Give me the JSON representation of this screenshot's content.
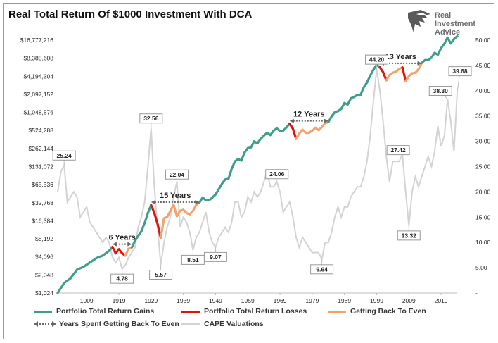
{
  "title": "Real Total Return Of $1000 Investment With DCA",
  "logo": {
    "line1": "Real",
    "line2": "Investment",
    "line3": "Advice",
    "icon": "eagle-logo-icon"
  },
  "colors": {
    "gains": "#3f9e8a",
    "losses": "#e3120b",
    "back_to_even": "#f4a36c",
    "cape": "#d3d3d3",
    "span_arrow": "#666666"
  },
  "chart_data": {
    "type": "line",
    "left_axis": {
      "scale": "log2",
      "ticks": [
        "$1,024",
        "$2,048",
        "$4,096",
        "$8,192",
        "$16,384",
        "$32,768",
        "$65,536",
        "$131,072",
        "$262,144",
        "$524,288",
        "$1,048,576",
        "$2,097,152",
        "$4,194,304",
        "$8,388,608",
        "$16,777,216"
      ],
      "min": 1024,
      "max": 16777216
    },
    "right_axis": {
      "ticks": [
        "-",
        "5.00",
        "10.00",
        "15.00",
        "20.00",
        "25.00",
        "30.00",
        "35.00",
        "40.00",
        "45.00",
        "50.00"
      ],
      "min": 0,
      "max": 50
    },
    "x_axis": {
      "ticks": [
        "1909",
        "1919",
        "1929",
        "1939",
        "1949",
        "1959",
        "1969",
        "1979",
        "1989",
        "1999",
        "2009",
        "2019"
      ],
      "min": 1900,
      "max": 2024
    },
    "portfolio": [
      [
        1900,
        1024
      ],
      [
        1902,
        1500
      ],
      [
        1904,
        1800
      ],
      [
        1906,
        2500
      ],
      [
        1908,
        2800
      ],
      [
        1910,
        3300
      ],
      [
        1912,
        3900
      ],
      [
        1914,
        4300
      ],
      [
        1916,
        5200
      ],
      [
        1917,
        6000
      ],
      [
        1918,
        4700
      ],
      [
        1919,
        5500
      ],
      [
        1920,
        4700
      ],
      [
        1921,
        4300
      ],
      [
        1922,
        5600
      ],
      [
        1923,
        5900
      ],
      [
        1924,
        7600
      ],
      [
        1925,
        9200
      ],
      [
        1926,
        11000
      ],
      [
        1927,
        15000
      ],
      [
        1928,
        22000
      ],
      [
        1929,
        30000
      ],
      [
        1930,
        22000
      ],
      [
        1931,
        14500
      ],
      [
        1932,
        8500
      ],
      [
        1933,
        18000
      ],
      [
        1934,
        19000
      ],
      [
        1935,
        24000
      ],
      [
        1936,
        30000
      ],
      [
        1937,
        19500
      ],
      [
        1938,
        24000
      ],
      [
        1939,
        25000
      ],
      [
        1940,
        22000
      ],
      [
        1941,
        21000
      ],
      [
        1942,
        24000
      ],
      [
        1943,
        30000
      ],
      [
        1944,
        33000
      ],
      [
        1945,
        40000
      ],
      [
        1946,
        36000
      ],
      [
        1947,
        36000
      ],
      [
        1948,
        40000
      ],
      [
        1949,
        45000
      ],
      [
        1950,
        55000
      ],
      [
        1951,
        68000
      ],
      [
        1952,
        80000
      ],
      [
        1953,
        82000
      ],
      [
        1954,
        120000
      ],
      [
        1955,
        160000
      ],
      [
        1956,
        175000
      ],
      [
        1957,
        165000
      ],
      [
        1958,
        225000
      ],
      [
        1959,
        265000
      ],
      [
        1960,
        275000
      ],
      [
        1961,
        345000
      ],
      [
        1962,
        320000
      ],
      [
        1963,
        380000
      ],
      [
        1964,
        430000
      ],
      [
        1965,
        480000
      ],
      [
        1966,
        440000
      ],
      [
        1967,
        520000
      ],
      [
        1968,
        570000
      ],
      [
        1969,
        510000
      ],
      [
        1970,
        520000
      ],
      [
        1971,
        590000
      ],
      [
        1972,
        680000
      ],
      [
        1973,
        560000
      ],
      [
        1974,
        380000
      ],
      [
        1975,
        470000
      ],
      [
        1976,
        540000
      ],
      [
        1977,
        480000
      ],
      [
        1978,
        480000
      ],
      [
        1979,
        520000
      ],
      [
        1980,
        580000
      ],
      [
        1981,
        530000
      ],
      [
        1982,
        600000
      ],
      [
        1983,
        690000
      ],
      [
        1984,
        720000
      ],
      [
        1985,
        900000
      ],
      [
        1986,
        1050000
      ],
      [
        1987,
        1100000
      ],
      [
        1988,
        1200000
      ],
      [
        1989,
        1500000
      ],
      [
        1990,
        1420000
      ],
      [
        1991,
        1800000
      ],
      [
        1992,
        1900000
      ],
      [
        1993,
        2050000
      ],
      [
        1994,
        2050000
      ],
      [
        1995,
        2750000
      ],
      [
        1996,
        3300000
      ],
      [
        1997,
        4300000
      ],
      [
        1998,
        5400000
      ],
      [
        1999,
        6500000
      ],
      [
        2000,
        5900000
      ],
      [
        2001,
        4900000
      ],
      [
        2002,
        3600000
      ],
      [
        2003,
        4400000
      ],
      [
        2004,
        4800000
      ],
      [
        2005,
        5000000
      ],
      [
        2006,
        5600000
      ],
      [
        2007,
        5900000
      ],
      [
        2008,
        3500000
      ],
      [
        2009,
        4200000
      ],
      [
        2010,
        4700000
      ],
      [
        2011,
        4800000
      ],
      [
        2012,
        5500000
      ],
      [
        2013,
        7000000
      ],
      [
        2014,
        7800000
      ],
      [
        2015,
        7800000
      ],
      [
        2016,
        8600000
      ],
      [
        2017,
        10300000
      ],
      [
        2018,
        9600000
      ],
      [
        2019,
        12400000
      ],
      [
        2020,
        14500000
      ],
      [
        2021,
        18500000
      ],
      [
        2022,
        14800000
      ],
      [
        2023,
        17500000
      ],
      [
        2024,
        19500000
      ]
    ],
    "loss_periods": [
      [
        1917,
        1921
      ],
      [
        1929,
        1932
      ],
      [
        1972,
        1974
      ],
      [
        2000,
        2002
      ],
      [
        2007,
        2008
      ]
    ],
    "recovery_periods": [
      [
        1921,
        1923
      ],
      [
        1932,
        1944
      ],
      [
        1974,
        1984
      ],
      [
        2002,
        2013
      ]
    ],
    "cape": [
      [
        1900,
        20
      ],
      [
        1901,
        24
      ],
      [
        1902,
        25.24
      ],
      [
        1903,
        18
      ],
      [
        1904,
        19
      ],
      [
        1905,
        20
      ],
      [
        1906,
        19
      ],
      [
        1907,
        15
      ],
      [
        1908,
        16
      ],
      [
        1909,
        17
      ],
      [
        1910,
        14
      ],
      [
        1911,
        13
      ],
      [
        1912,
        12
      ],
      [
        1913,
        11
      ],
      [
        1914,
        10
      ],
      [
        1915,
        11
      ],
      [
        1916,
        10
      ],
      [
        1917,
        7
      ],
      [
        1918,
        6
      ],
      [
        1919,
        7
      ],
      [
        1920,
        4.78
      ],
      [
        1921,
        5.5
      ],
      [
        1922,
        7
      ],
      [
        1923,
        8
      ],
      [
        1924,
        9
      ],
      [
        1925,
        13
      ],
      [
        1926,
        15
      ],
      [
        1927,
        18
      ],
      [
        1928,
        25
      ],
      [
        1929,
        32.56
      ],
      [
        1930,
        21
      ],
      [
        1931,
        13
      ],
      [
        1932,
        5.57
      ],
      [
        1933,
        10
      ],
      [
        1934,
        13
      ],
      [
        1935,
        15
      ],
      [
        1936,
        19
      ],
      [
        1937,
        22.04
      ],
      [
        1938,
        13
      ],
      [
        1939,
        15
      ],
      [
        1940,
        14
      ],
      [
        1941,
        12
      ],
      [
        1942,
        8.51
      ],
      [
        1943,
        11
      ],
      [
        1944,
        12
      ],
      [
        1945,
        14
      ],
      [
        1946,
        16
      ],
      [
        1947,
        12
      ],
      [
        1948,
        10
      ],
      [
        1949,
        9.07
      ],
      [
        1950,
        11
      ],
      [
        1951,
        12
      ],
      [
        1952,
        13
      ],
      [
        1953,
        12
      ],
      [
        1954,
        14
      ],
      [
        1955,
        18
      ],
      [
        1956,
        18
      ],
      [
        1957,
        15
      ],
      [
        1958,
        16
      ],
      [
        1959,
        19
      ],
      [
        1960,
        18
      ],
      [
        1961,
        20
      ],
      [
        1962,
        19
      ],
      [
        1963,
        20
      ],
      [
        1964,
        22
      ],
      [
        1965,
        24.06
      ],
      [
        1966,
        21
      ],
      [
        1967,
        21
      ],
      [
        1968,
        22
      ],
      [
        1969,
        20
      ],
      [
        1970,
        16
      ],
      [
        1971,
        17
      ],
      [
        1972,
        18
      ],
      [
        1973,
        15
      ],
      [
        1974,
        11
      ],
      [
        1975,
        9
      ],
      [
        1976,
        11
      ],
      [
        1977,
        10
      ],
      [
        1978,
        9
      ],
      [
        1979,
        8
      ],
      [
        1980,
        8
      ],
      [
        1981,
        8
      ],
      [
        1982,
        6.64
      ],
      [
        1983,
        10
      ],
      [
        1984,
        10
      ],
      [
        1985,
        12
      ],
      [
        1986,
        15
      ],
      [
        1987,
        17
      ],
      [
        1988,
        15
      ],
      [
        1989,
        17
      ],
      [
        1990,
        17
      ],
      [
        1991,
        19
      ],
      [
        1992,
        20
      ],
      [
        1993,
        21
      ],
      [
        1994,
        21
      ],
      [
        1995,
        23
      ],
      [
        1996,
        26
      ],
      [
        1997,
        31
      ],
      [
        1998,
        38
      ],
      [
        1999,
        44.2
      ],
      [
        2000,
        40
      ],
      [
        2001,
        34
      ],
      [
        2002,
        27
      ],
      [
        2003,
        22
      ],
      [
        2004,
        26
      ],
      [
        2005,
        26
      ],
      [
        2006,
        26
      ],
      [
        2007,
        27.42
      ],
      [
        2008,
        20
      ],
      [
        2009,
        13.32
      ],
      [
        2010,
        20
      ],
      [
        2011,
        23
      ],
      [
        2012,
        21
      ],
      [
        2013,
        23
      ],
      [
        2014,
        25
      ],
      [
        2015,
        27
      ],
      [
        2016,
        25
      ],
      [
        2017,
        28
      ],
      [
        2018,
        33
      ],
      [
        2019,
        29
      ],
      [
        2020,
        31
      ],
      [
        2021,
        38.3
      ],
      [
        2022,
        34
      ],
      [
        2023,
        28
      ],
      [
        2024,
        39.68
      ]
    ],
    "cape_callouts": [
      {
        "label": "25.24",
        "x": 1902,
        "y": 25.24
      },
      {
        "label": "4.78",
        "x": 1920,
        "y": 4.78
      },
      {
        "label": "32.56",
        "x": 1929,
        "y": 32.56
      },
      {
        "label": "5.57",
        "x": 1932,
        "y": 5.57
      },
      {
        "label": "22.04",
        "x": 1937,
        "y": 22.04
      },
      {
        "label": "8.51",
        "x": 1942,
        "y": 8.51
      },
      {
        "label": "9.07",
        "x": 1949,
        "y": 9.07
      },
      {
        "label": "24.06",
        "x": 1965,
        "y": 24.06
      },
      {
        "label": "6.64",
        "x": 1982,
        "y": 6.64
      },
      {
        "label": "44.20",
        "x": 1999,
        "y": 44.2
      },
      {
        "label": "27.42",
        "x": 2007,
        "y": 27.42
      },
      {
        "label": "13.32",
        "x": 2009,
        "y": 13.32
      },
      {
        "label": "38.30",
        "x": 2021,
        "y": 38.3
      },
      {
        "label": "39.68",
        "x": 2024,
        "y": 39.68
      }
    ],
    "spans": [
      {
        "label": "6 Years",
        "x0": 1917,
        "x1": 1923,
        "value": 6000
      },
      {
        "label": "15 Years",
        "x0": 1929,
        "x1": 1944,
        "value": 30000
      },
      {
        "label": "12 Years",
        "x0": 1972,
        "x1": 1984,
        "value": 680000
      },
      {
        "label": "13 Years",
        "x0": 2000,
        "x1": 2013,
        "value": 6200000
      }
    ],
    "legend": [
      {
        "label": "Portfolio Total Return Gains",
        "color": "#3f9e8a",
        "style": "solid"
      },
      {
        "label": "Portfolio Total Return Losses",
        "color": "#e3120b",
        "style": "solid"
      },
      {
        "label": "Getting Back To Even",
        "color": "#f4a36c",
        "style": "solid"
      },
      {
        "label": "Years Spent Getting Back To Even",
        "color": "#666666",
        "style": "dotted-arrow"
      },
      {
        "label": "CAPE Valuations",
        "color": "#d3d3d3",
        "style": "solid"
      }
    ],
    "grid": false
  }
}
